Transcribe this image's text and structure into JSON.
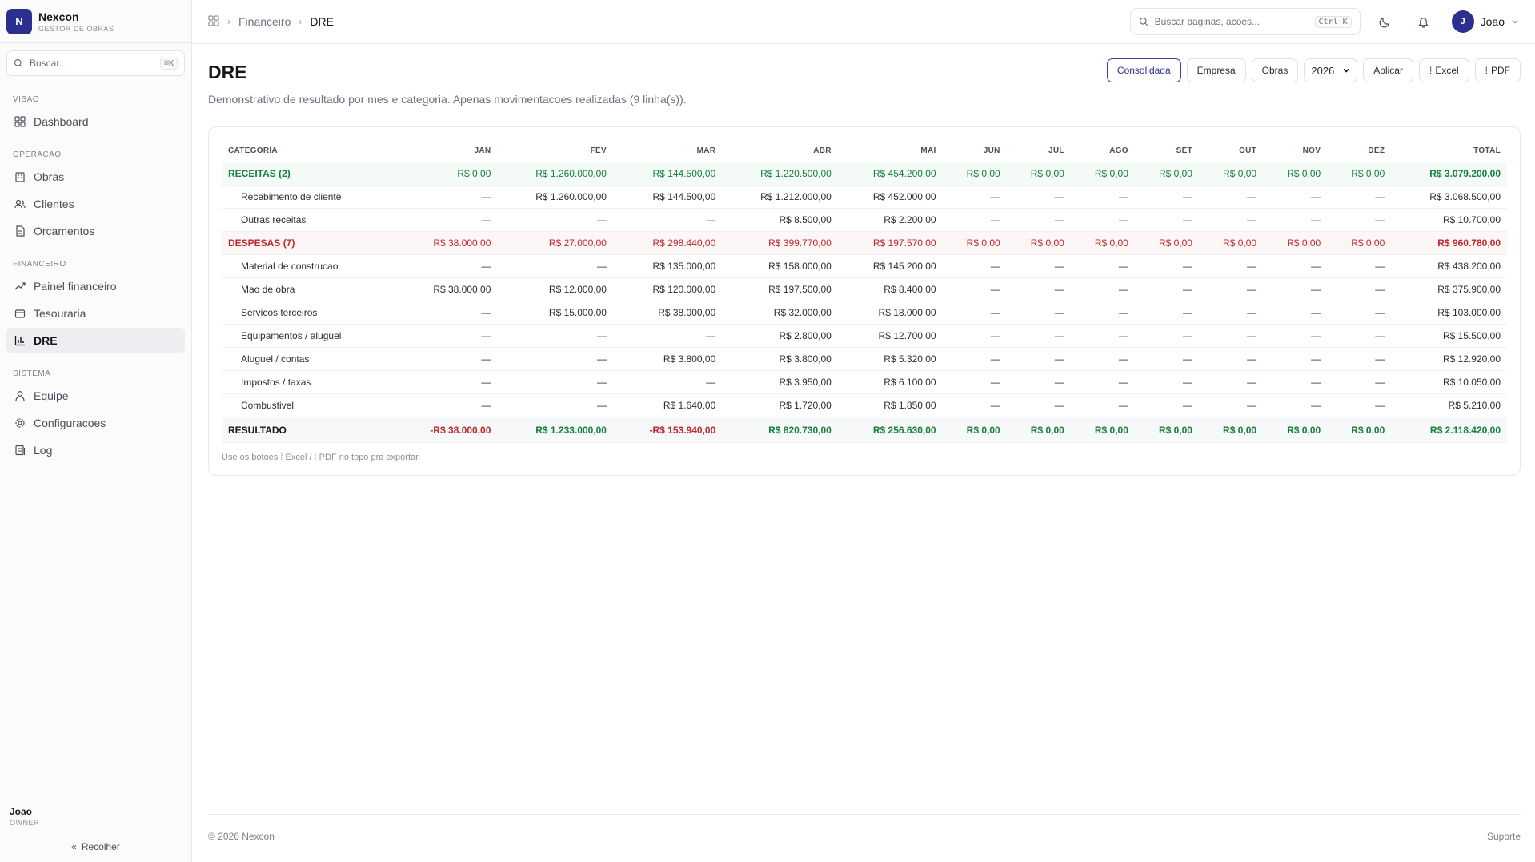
{
  "brand": {
    "logo_letter": "N",
    "name": "Nexcon",
    "subtitle": "GESTOR DE OBRAS"
  },
  "sidebar": {
    "search_placeholder": "Buscar...",
    "search_shortcut": "⌘K",
    "sections": [
      {
        "title": "VISAO",
        "items": [
          {
            "label": "Dashboard",
            "icon": "grid-icon"
          }
        ]
      },
      {
        "title": "OPERACAO",
        "items": [
          {
            "label": "Obras",
            "icon": "building-icon"
          },
          {
            "label": "Clientes",
            "icon": "users-icon"
          },
          {
            "label": "Orcamentos",
            "icon": "document-icon"
          }
        ]
      },
      {
        "title": "FINANCEIRO",
        "items": [
          {
            "label": "Painel financeiro",
            "icon": "trend-icon"
          },
          {
            "label": "Tesouraria",
            "icon": "wallet-icon"
          },
          {
            "label": "DRE",
            "icon": "bar-chart-icon",
            "active": true
          }
        ]
      },
      {
        "title": "SISTEMA",
        "items": [
          {
            "label": "Equipe",
            "icon": "user-icon"
          },
          {
            "label": "Configuracoes",
            "icon": "gear-icon"
          },
          {
            "label": "Log",
            "icon": "log-icon"
          }
        ]
      }
    ],
    "user": {
      "name": "Joao",
      "role": "OWNER"
    },
    "collapse_label": "Recolher"
  },
  "topbar": {
    "breadcrumb": [
      "Financeiro",
      "DRE"
    ],
    "search_placeholder": "Buscar paginas, acoes...",
    "search_shortcut": "Ctrl K",
    "user_initial": "J",
    "user_name": "Joao"
  },
  "page": {
    "title": "DRE",
    "description": "Demonstrativo de resultado por mes e categoria. Apenas movimentacoes realizadas (9 linha(s)).",
    "view_buttons": [
      "Consolidada",
      "Empresa",
      "Obras"
    ],
    "active_view": "Consolidada",
    "year": "2026",
    "apply_label": "Aplicar",
    "excel_label": "Excel",
    "pdf_label": "PDF",
    "hint": "Use os botoes ⁞ Excel / ⁞ PDF no topo pra exportar."
  },
  "table": {
    "headers": [
      "CATEGORIA",
      "JAN",
      "FEV",
      "MAR",
      "ABR",
      "MAI",
      "JUN",
      "JUL",
      "AGO",
      "SET",
      "OUT",
      "NOV",
      "DEZ",
      "TOTAL"
    ],
    "rows": [
      {
        "type": "rec",
        "cells": [
          "RECEITAS (2)",
          "R$ 0,00",
          "R$ 1.260.000,00",
          "R$ 144.500,00",
          "R$ 1.220.500,00",
          "R$ 454.200,00",
          "R$ 0,00",
          "R$ 0,00",
          "R$ 0,00",
          "R$ 0,00",
          "R$ 0,00",
          "R$ 0,00",
          "R$ 0,00",
          "R$ 3.079.200,00"
        ]
      },
      {
        "type": "sub",
        "cells": [
          "Recebimento de cliente",
          "—",
          "R$ 1.260.000,00",
          "R$ 144.500,00",
          "R$ 1.212.000,00",
          "R$ 452.000,00",
          "—",
          "—",
          "—",
          "—",
          "—",
          "—",
          "—",
          "R$ 3.068.500,00"
        ]
      },
      {
        "type": "sub",
        "cells": [
          "Outras receitas",
          "—",
          "—",
          "—",
          "R$ 8.500,00",
          "R$ 2.200,00",
          "—",
          "—",
          "—",
          "—",
          "—",
          "—",
          "—",
          "R$ 10.700,00"
        ]
      },
      {
        "type": "desp",
        "cells": [
          "DESPESAS (7)",
          "R$ 38.000,00",
          "R$ 27.000,00",
          "R$ 298.440,00",
          "R$ 399.770,00",
          "R$ 197.570,00",
          "R$ 0,00",
          "R$ 0,00",
          "R$ 0,00",
          "R$ 0,00",
          "R$ 0,00",
          "R$ 0,00",
          "R$ 0,00",
          "R$ 960.780,00"
        ]
      },
      {
        "type": "sub",
        "cells": [
          "Material de construcao",
          "—",
          "—",
          "R$ 135.000,00",
          "R$ 158.000,00",
          "R$ 145.200,00",
          "—",
          "—",
          "—",
          "—",
          "—",
          "—",
          "—",
          "R$ 438.200,00"
        ]
      },
      {
        "type": "sub",
        "cells": [
          "Mao de obra",
          "R$ 38.000,00",
          "R$ 12.000,00",
          "R$ 120.000,00",
          "R$ 197.500,00",
          "R$ 8.400,00",
          "—",
          "—",
          "—",
          "—",
          "—",
          "—",
          "—",
          "R$ 375.900,00"
        ]
      },
      {
        "type": "sub",
        "cells": [
          "Servicos terceiros",
          "—",
          "R$ 15.000,00",
          "R$ 38.000,00",
          "R$ 32.000,00",
          "R$ 18.000,00",
          "—",
          "—",
          "—",
          "—",
          "—",
          "—",
          "—",
          "R$ 103.000,00"
        ]
      },
      {
        "type": "sub",
        "cells": [
          "Equipamentos / aluguel",
          "—",
          "—",
          "—",
          "R$ 2.800,00",
          "R$ 12.700,00",
          "—",
          "—",
          "—",
          "—",
          "—",
          "—",
          "—",
          "R$ 15.500,00"
        ]
      },
      {
        "type": "sub",
        "cells": [
          "Aluguel / contas",
          "—",
          "—",
          "R$ 3.800,00",
          "R$ 3.800,00",
          "R$ 5.320,00",
          "—",
          "—",
          "—",
          "—",
          "—",
          "—",
          "—",
          "R$ 12.920,00"
        ]
      },
      {
        "type": "sub",
        "cells": [
          "Impostos / taxas",
          "—",
          "—",
          "—",
          "R$ 3.950,00",
          "R$ 6.100,00",
          "—",
          "—",
          "—",
          "—",
          "—",
          "—",
          "—",
          "R$ 10.050,00"
        ]
      },
      {
        "type": "sub",
        "cells": [
          "Combustivel",
          "—",
          "—",
          "R$ 1.640,00",
          "R$ 1.720,00",
          "R$ 1.850,00",
          "—",
          "—",
          "—",
          "—",
          "—",
          "—",
          "—",
          "R$ 5.210,00"
        ]
      },
      {
        "type": "total",
        "cells": [
          "RESULTADO",
          "-R$ 38.000,00",
          "R$ 1.233.000,00",
          "-R$ 153.940,00",
          "R$ 820.730,00",
          "R$ 256.630,00",
          "R$ 0,00",
          "R$ 0,00",
          "R$ 0,00",
          "R$ 0,00",
          "R$ 0,00",
          "R$ 0,00",
          "R$ 0,00",
          "R$ 2.118.420,00"
        ]
      }
    ]
  },
  "footer": {
    "copyright": "© 2026 Nexcon",
    "support": "Suporte"
  },
  "colors": {
    "brand": "#2b2f8f",
    "positive": "#15803d",
    "negative": "#c0262d"
  }
}
